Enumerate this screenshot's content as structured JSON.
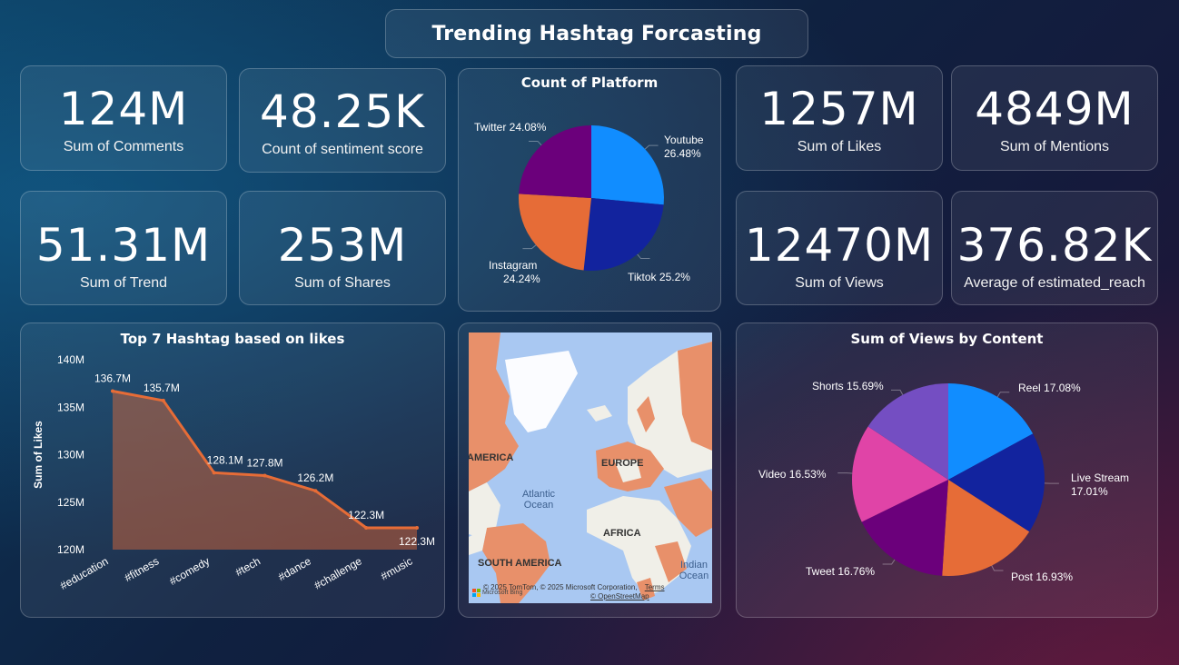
{
  "title": "Trending Hashtag Forcasting",
  "kpis": [
    {
      "value": "124M",
      "label": "Sum of Comments"
    },
    {
      "value": "48.25K",
      "label": "Count of sentiment  score"
    },
    {
      "value": "51.31M",
      "label": "Sum of Trend"
    },
    {
      "value": "253M",
      "label": "Sum of Shares"
    },
    {
      "value": "1257M",
      "label": "Sum of Likes"
    },
    {
      "value": "4849M",
      "label": "Sum of Mentions"
    },
    {
      "value": "12470M",
      "label": "Sum of Views"
    },
    {
      "value": "376.82K",
      "label": "Average of estimated_reach"
    }
  ],
  "map": {
    "labels": {
      "europe": "EUROPE",
      "africa": "AFRICA",
      "south_america": "SOUTH AMERICA",
      "america": "AMERICA",
      "atlantic": "Atlantic\nOcean",
      "indian": "Indian\nOcean"
    },
    "attribution": "© 2025 TomTom, © 2025 Microsoft Corporation,",
    "terms": "Terms",
    "osm": "© OpenStreetMap",
    "brand": "Microsoft Bing"
  },
  "chart_data": [
    {
      "type": "pie",
      "title": "Count of Platform",
      "slices": [
        {
          "name": "Youtube",
          "value": 26.48,
          "label": "26.48%",
          "color": "#118DFF"
        },
        {
          "name": "Tiktok",
          "value": 25.2,
          "label": "25.2%",
          "color": "#12239E"
        },
        {
          "name": "Instagram",
          "value": 24.24,
          "label": "24.24%",
          "color": "#E66C37"
        },
        {
          "name": "Twitter",
          "value": 24.08,
          "label": "24.08%",
          "color": "#6B007B"
        }
      ]
    },
    {
      "type": "area",
      "title": "Top 7 Hashtag based on likes",
      "ylabel": "Sum of Likes",
      "xlabel": "",
      "categories": [
        "#education",
        "#fitness",
        "#comedy",
        "#tech",
        "#dance",
        "#challenge",
        "#music"
      ],
      "values": [
        136.7,
        135.7,
        128.1,
        127.8,
        126.2,
        122.3,
        122.3
      ],
      "value_labels": [
        "136.7M",
        "135.7M",
        "128.1M",
        "127.8M",
        "126.2M",
        "122.3M",
        "122.3M"
      ],
      "yticks": [
        "120M",
        "125M",
        "130M",
        "135M",
        "140M"
      ],
      "ylim": [
        120,
        140
      ],
      "color": "#E66C37"
    },
    {
      "type": "pie",
      "title": "Sum of Views by Content",
      "slices": [
        {
          "name": "Reel",
          "value": 17.08,
          "label": "17.08%",
          "color": "#118DFF"
        },
        {
          "name": "Live Stream",
          "value": 17.01,
          "label": "17.01%",
          "color": "#12239E"
        },
        {
          "name": "Post",
          "value": 16.93,
          "label": "16.93%",
          "color": "#E66C37"
        },
        {
          "name": "Tweet",
          "value": 16.76,
          "label": "16.76%",
          "color": "#6B007B"
        },
        {
          "name": "Video",
          "value": 16.53,
          "label": "16.53%",
          "color": "#E044A7"
        },
        {
          "name": "Shorts",
          "value": 15.69,
          "label": "15.69%",
          "color": "#744EC2"
        }
      ]
    }
  ]
}
